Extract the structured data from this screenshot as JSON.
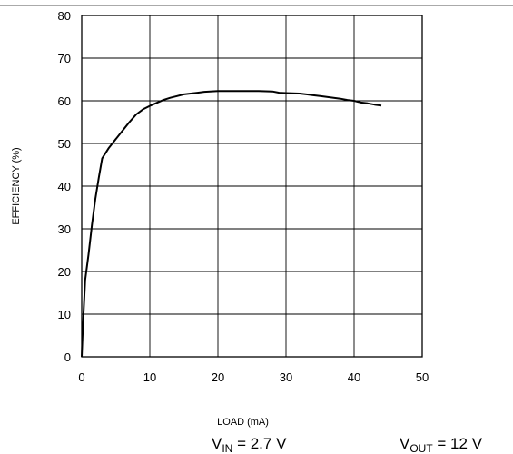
{
  "chart_data": {
    "type": "line",
    "title": "",
    "xlabel": "LOAD (mA)",
    "ylabel": "EFFICIENCY (%)",
    "xlim": [
      0,
      50
    ],
    "ylim": [
      0,
      80
    ],
    "xticks": [
      0,
      10,
      20,
      30,
      40,
      50
    ],
    "yticks": [
      0,
      10,
      20,
      30,
      40,
      50,
      60,
      70,
      80
    ],
    "grid": true,
    "series": [
      {
        "x": [
          0,
          0.2,
          0.5,
          1,
          1.5,
          2,
          2.5,
          3,
          4,
          5,
          6,
          7,
          8,
          9,
          10,
          11,
          12,
          13,
          14,
          15,
          16,
          17,
          18,
          20,
          22,
          24,
          26,
          28,
          29,
          30,
          32,
          33,
          34,
          35,
          36,
          37,
          38,
          39,
          40,
          41,
          42,
          43,
          44
        ],
        "y": [
          0,
          8,
          18,
          24,
          31,
          37,
          42,
          46.5,
          49,
          51,
          53,
          55,
          56.8,
          58,
          58.8,
          59.5,
          60.2,
          60.7,
          61.1,
          61.5,
          61.7,
          61.9,
          62.1,
          62.3,
          62.3,
          62.3,
          62.3,
          62.2,
          61.9,
          61.8,
          61.7,
          61.5,
          61.3,
          61.1,
          60.9,
          60.7,
          60.5,
          60.2,
          60,
          59.6,
          59.4,
          59.1,
          58.9
        ]
      }
    ],
    "conditions": {
      "vin": {
        "main": "V",
        "sub": "IN",
        "rest": " = 2.7 V"
      },
      "vout": {
        "main": "V",
        "sub": "OUT",
        "rest": " = 12 V"
      }
    }
  }
}
